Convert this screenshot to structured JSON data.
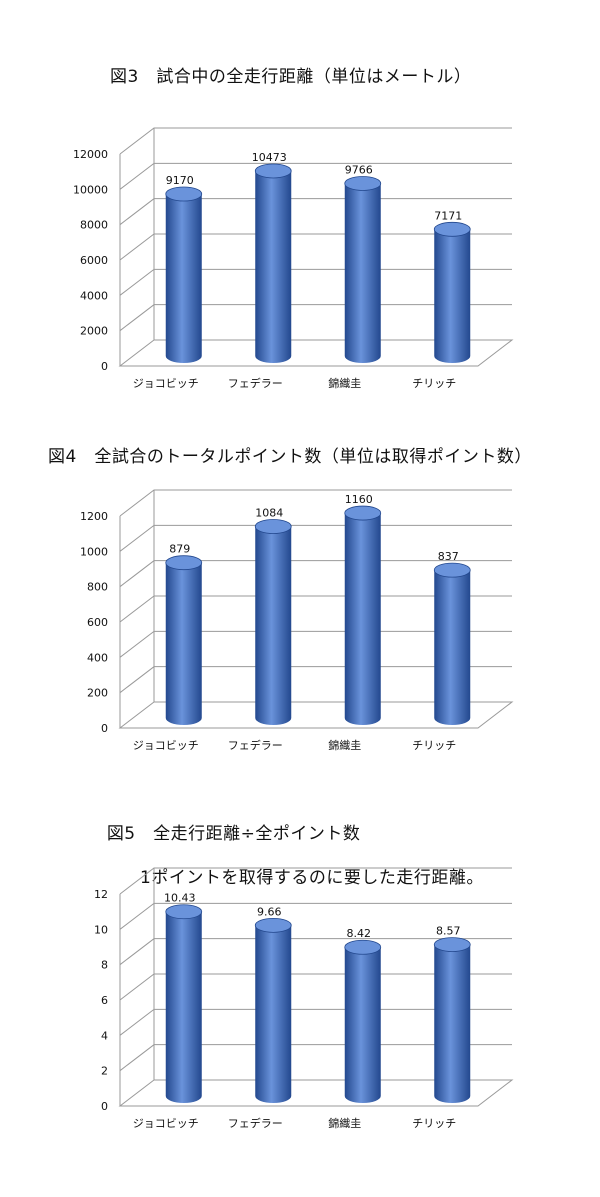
{
  "titles": {
    "fig3": "図3　試合中の全走行距離（単位はメートル）",
    "fig4": "図4　全試合のトータルポイント数（単位は取得ポイント数）",
    "fig5_line1": "図5　全走行距離÷全ポイント数",
    "fig5_line2": "1ポイントを取得するのに要した走行距離。"
  },
  "colors": {
    "bar": "#3a6cc4",
    "bar_dark": "#23488e",
    "bar_light": "#6a93db",
    "grid": "#9a9a9a"
  },
  "chart_data": [
    {
      "type": "bar",
      "title": "図3　試合中の全走行距離（単位はメートル）",
      "categories": [
        "ジョコビッチ",
        "フェデラー",
        "錦織圭",
        "チリッチ"
      ],
      "values": [
        9170,
        10473,
        9766,
        7171
      ],
      "value_labels": [
        "9170",
        "10473",
        "9766",
        "7171"
      ],
      "yticks": [
        "0",
        "2000",
        "4000",
        "6000",
        "8000",
        "10000",
        "12000"
      ],
      "ylim": [
        0,
        12000
      ],
      "grid": true
    },
    {
      "type": "bar",
      "title": "図4　全試合のトータルポイント数（単位は取得ポイント数）",
      "categories": [
        "ジョコビッチ",
        "フェデラー",
        "錦織圭",
        "チリッチ"
      ],
      "values": [
        879,
        1084,
        1160,
        837
      ],
      "value_labels": [
        "879",
        "1084",
        "1160",
        "837"
      ],
      "yticks": [
        "0",
        "200",
        "400",
        "600",
        "800",
        "1000",
        "1200"
      ],
      "ylim": [
        0,
        1200
      ],
      "grid": true
    },
    {
      "type": "bar",
      "title": "図5　全走行距離÷全ポイント数 1ポイントを取得するのに要した走行距離。",
      "categories": [
        "ジョコビッチ",
        "フェデラー",
        "錦織圭",
        "チリッチ"
      ],
      "values": [
        10.43,
        9.66,
        8.42,
        8.57
      ],
      "value_labels": [
        "10.43",
        "9.66",
        "8.42",
        "8.57"
      ],
      "yticks": [
        "0",
        "2",
        "4",
        "6",
        "8",
        "10",
        "12"
      ],
      "ylim": [
        0,
        12
      ],
      "grid": true
    }
  ]
}
